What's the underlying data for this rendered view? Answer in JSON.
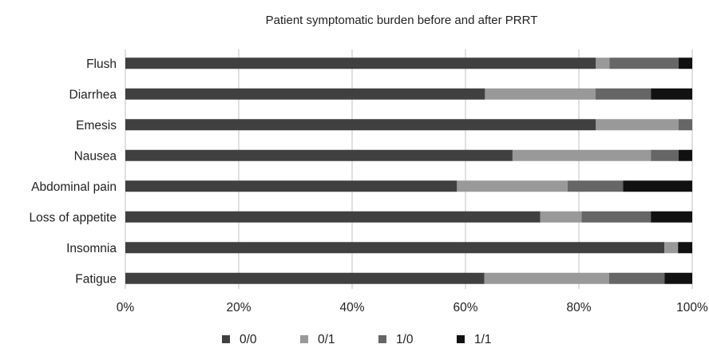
{
  "chart_data": {
    "type": "bar",
    "orientation": "horizontal",
    "stacked": "percent",
    "title": "Patient symptomatic burden before and after PRRT",
    "xlabel": "",
    "ylabel": "",
    "xlim": [
      0,
      100
    ],
    "x_ticks": [
      "0%",
      "20%",
      "40%",
      "60%",
      "80%",
      "100%"
    ],
    "grid": "vertical",
    "legend_position": "bottom",
    "categories": [
      "Flush",
      "Diarrhea",
      "Emesis",
      "Nausea",
      "Abdominal pain",
      "Loss of appetite",
      "Insomnia",
      "Fatigue"
    ],
    "series": [
      {
        "name": "0/0",
        "color": "#404040",
        "values": [
          83,
          63.5,
          83,
          68.3,
          58.5,
          73.2,
          95.1,
          63.4
        ]
      },
      {
        "name": "0/1",
        "color": "#999999",
        "values": [
          2.4,
          19.5,
          14.6,
          24.4,
          19.5,
          7.3,
          2.4,
          22
        ]
      },
      {
        "name": "1/0",
        "color": "#666666",
        "values": [
          12.2,
          9.8,
          2.4,
          4.9,
          9.8,
          12.2,
          0,
          9.8
        ]
      },
      {
        "name": "1/1",
        "color": "#111111",
        "values": [
          2.4,
          7.3,
          0,
          2.4,
          12.2,
          7.3,
          2.5,
          4.9
        ]
      }
    ]
  }
}
